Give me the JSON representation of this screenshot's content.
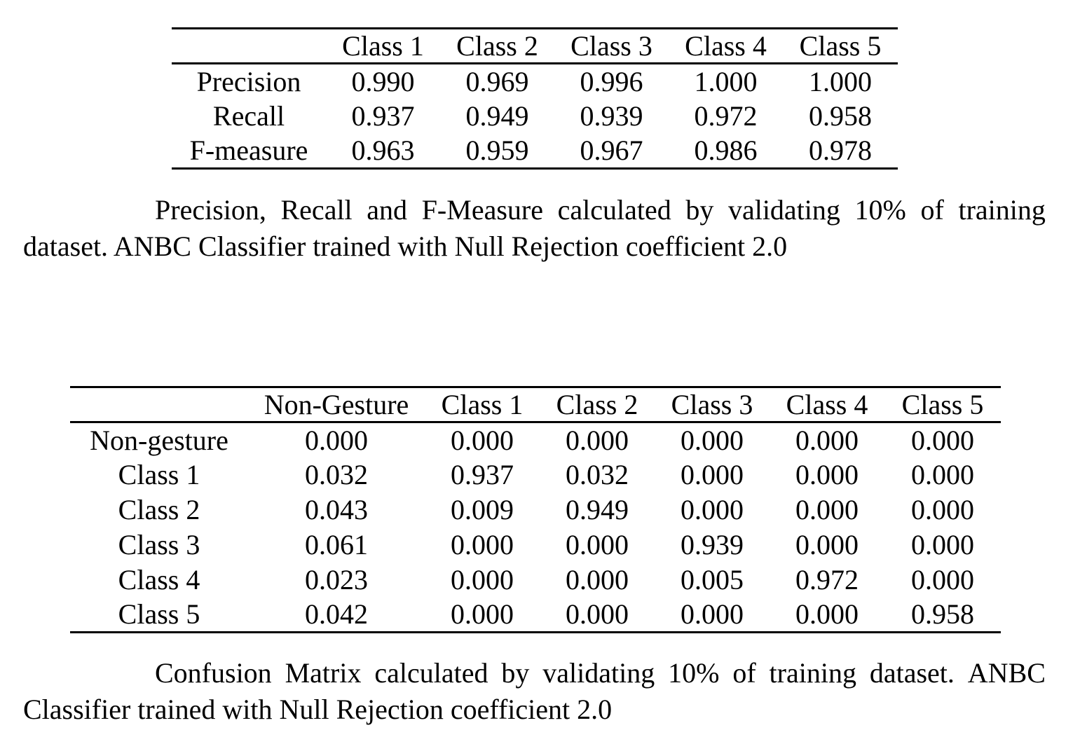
{
  "page": {
    "background_color": "#ffffff",
    "text_color": "#000000",
    "rule_color": "#000000"
  },
  "metrics_table": {
    "columns": [
      "",
      "Class 1",
      "Class 2",
      "Class 3",
      "Class 4",
      "Class 5"
    ],
    "rows": [
      {
        "label": "Precision",
        "values": [
          "0.990",
          "0.969",
          "0.996",
          "1.000",
          "1.000"
        ]
      },
      {
        "label": "Recall",
        "values": [
          "0.937",
          "0.949",
          "0.939",
          "0.972",
          "0.958"
        ]
      },
      {
        "label": "F-measure",
        "values": [
          "0.963",
          "0.959",
          "0.967",
          "0.986",
          "0.978"
        ]
      }
    ]
  },
  "metrics_caption": {
    "line1": "Precision, Recall and F-Measure calculated by validating 10% of training",
    "line2": "dataset. ANBC Classifier trained with Null Rejection coefficient 2.0"
  },
  "confusion_table": {
    "columns": [
      "",
      "Non-Gesture",
      "Class 1",
      "Class 2",
      "Class 3",
      "Class 4",
      "Class 5"
    ],
    "rows": [
      {
        "label": "Non-gesture",
        "values": [
          "0.000",
          "0.000",
          "0.000",
          "0.000",
          "0.000",
          "0.000"
        ]
      },
      {
        "label": "Class 1",
        "values": [
          "0.032",
          "0.937",
          "0.032",
          "0.000",
          "0.000",
          "0.000"
        ]
      },
      {
        "label": "Class 2",
        "values": [
          "0.043",
          "0.009",
          "0.949",
          "0.000",
          "0.000",
          "0.000"
        ]
      },
      {
        "label": "Class 3",
        "values": [
          "0.061",
          "0.000",
          "0.000",
          "0.939",
          "0.000",
          "0.000"
        ]
      },
      {
        "label": "Class 4",
        "values": [
          "0.023",
          "0.000",
          "0.000",
          "0.005",
          "0.972",
          "0.000"
        ]
      },
      {
        "label": "Class 5",
        "values": [
          "0.042",
          "0.000",
          "0.000",
          "0.000",
          "0.000",
          "0.958"
        ]
      }
    ]
  },
  "confusion_caption": {
    "line1": "Confusion Matrix calculated by validating 10% of training dataset.  ANBC",
    "line2": "Classifier trained with Null Rejection coefficient 2.0"
  }
}
